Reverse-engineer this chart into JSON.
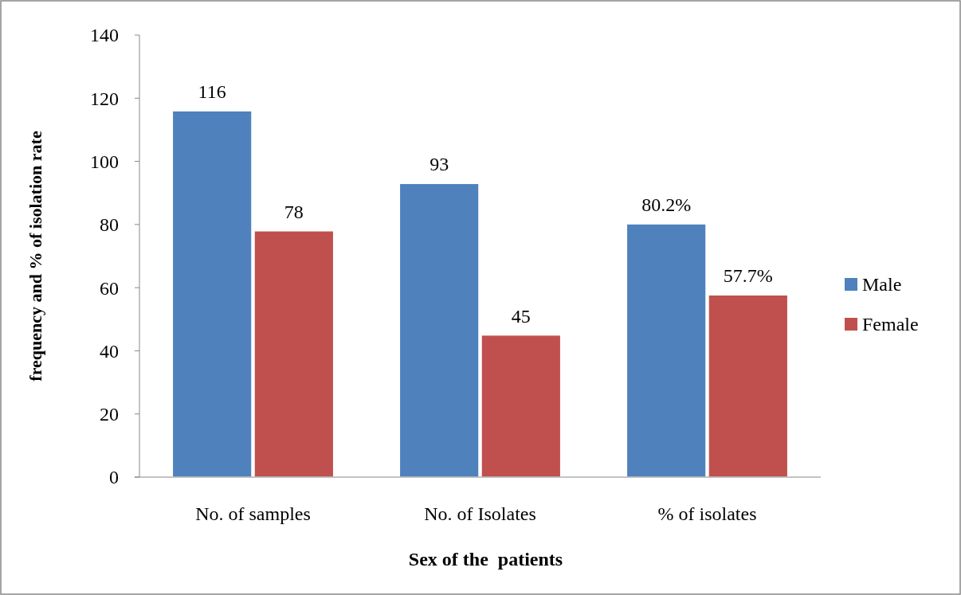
{
  "chart_data": {
    "type": "bar",
    "xlabel": "Sex of the  patients",
    "ylabel": "frequency and % of isolation rate",
    "categories": [
      "No. of samples",
      "No. of Isolates",
      "% of isolates"
    ],
    "series": [
      {
        "name": "Male",
        "color": "#4f81bd",
        "values": [
          116,
          93,
          80.2
        ],
        "value_labels": [
          "116",
          "93",
          "80.2%"
        ]
      },
      {
        "name": "Female",
        "color": "#c0504d",
        "values": [
          78,
          45,
          57.7
        ],
        "value_labels": [
          "78",
          "45",
          "57.7%"
        ]
      }
    ],
    "ylim": [
      0,
      140
    ],
    "yticks": [
      0,
      20,
      40,
      60,
      80,
      100,
      120,
      140
    ],
    "grid": false,
    "legend": "right"
  }
}
